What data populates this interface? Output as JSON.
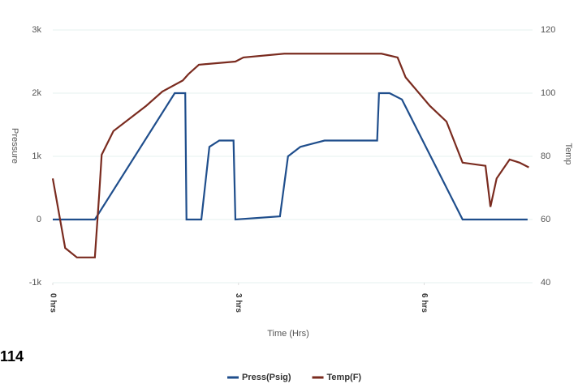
{
  "chart_data": {
    "type": "line",
    "annotation": "114",
    "x_label": "Time (Hrs)",
    "y_label": "Pressure",
    "y2_label": "Temp",
    "xlim": [
      0,
      7.75
    ],
    "xticks": [
      {
        "value": 0,
        "label": "0 hrs"
      },
      {
        "value": 3,
        "label": "3 hrs"
      },
      {
        "value": 6,
        "label": "6 hrs"
      }
    ],
    "ylim": [
      -1000,
      3000
    ],
    "yticks": [
      {
        "value": -1000,
        "label": "-1k"
      },
      0,
      {
        "value": 1000,
        "label": "1k"
      },
      {
        "value": 2000,
        "label": "2k"
      },
      {
        "value": 3000,
        "label": "3k"
      }
    ],
    "y2lim": [
      40,
      120
    ],
    "y2ticks": [
      40,
      60,
      80,
      100,
      120
    ],
    "grid": true,
    "legend": "bottom",
    "series": [
      {
        "name": "Press(Psig)",
        "color": "#1f4e8c",
        "x": [
          0,
          0.68,
          1.97,
          2.14,
          2.16,
          2.4,
          2.53,
          2.69,
          2.92,
          2.95,
          3.67,
          3.8,
          4.0,
          4.39,
          5.24,
          5.27,
          5.44,
          5.64,
          6.62,
          7.67
        ],
        "values": [
          0,
          0,
          2000,
          2000,
          0,
          0,
          1150,
          1250,
          1250,
          0,
          50,
          1000,
          1150,
          1250,
          1250,
          2000,
          2000,
          1900,
          0,
          0
        ]
      },
      {
        "name": "Temp(F)",
        "color": "#7a2b1f",
        "axis": "y2",
        "x": [
          0,
          0.2,
          0.39,
          0.68,
          0.75,
          0.79,
          0.98,
          1.51,
          1.77,
          2.1,
          2.19,
          2.36,
          2.95,
          3.08,
          3.74,
          5.31,
          5.57,
          5.7,
          6.09,
          6.36,
          6.62,
          6.99,
          7.07,
          7.17,
          7.38,
          7.54,
          7.69
        ],
        "values": [
          73,
          51,
          48,
          48,
          68,
          80.5,
          88,
          96,
          100.5,
          104,
          106,
          109,
          110,
          111.3,
          112.5,
          112.5,
          111.3,
          105,
          96,
          91,
          78,
          77,
          64,
          73,
          79,
          78,
          76.5
        ]
      }
    ]
  }
}
